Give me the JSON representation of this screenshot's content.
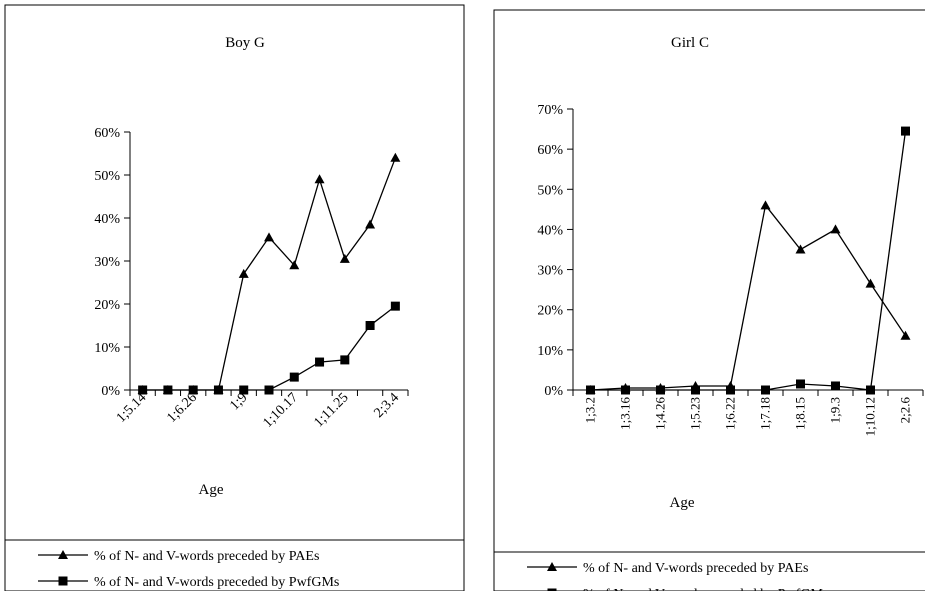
{
  "chart_data": [
    {
      "type": "line",
      "title": "Boy G",
      "xlabel": "Age",
      "ylabel": "",
      "ylim": [
        0,
        60
      ],
      "yticks": [
        "0%",
        "10%",
        "20%",
        "30%",
        "40%",
        "50%",
        "60%"
      ],
      "x": [
        "1;5.14",
        "",
        "1;6.26",
        "",
        "1;9",
        "",
        "1;10.17",
        "",
        "1;11.25",
        "",
        "2;3.4"
      ],
      "x_tick_labels": [
        "1;5.14",
        "1;6.26",
        "1;9",
        "1;10.17",
        "1;11.25",
        "2;3.4"
      ],
      "grid": false,
      "legend_position": "bottom",
      "series": [
        {
          "name": "% of N- and V-words preceded by PAEs",
          "marker": "triangle",
          "values": [
            0,
            0,
            0,
            0,
            27,
            35.5,
            29,
            49,
            30.5,
            38.5,
            54
          ]
        },
        {
          "name": "% of N- and V-words preceded by PwfGMs",
          "marker": "square",
          "values": [
            0,
            0,
            0,
            0,
            0,
            0,
            3,
            6.5,
            7,
            15,
            19.5
          ]
        }
      ]
    },
    {
      "type": "line",
      "title": "Girl C",
      "xlabel": "Age",
      "ylabel": "",
      "ylim": [
        0,
        70
      ],
      "yticks": [
        "0%",
        "10%",
        "20%",
        "30%",
        "40%",
        "50%",
        "60%",
        "70%"
      ],
      "x": [
        "1;3.2",
        "1;3.16",
        "1;4.26",
        "1;5.23",
        "1;6.22",
        "1;7.18",
        "1;8.15",
        "1;9.3",
        "1;10.12",
        "2;2.6"
      ],
      "x_tick_labels": [
        "1;3.2",
        "1;3.16",
        "1;4.26",
        "1;5.23",
        "1;6.22",
        "1;7.18",
        "1;8.15",
        "1;9.3",
        "1;10.12",
        "2;2.6"
      ],
      "grid": false,
      "legend_position": "bottom",
      "series": [
        {
          "name": "% of N- and V-words preceded by PAEs",
          "marker": "triangle",
          "values": [
            0,
            0.5,
            0.5,
            1,
            1,
            46,
            35,
            40,
            26.5,
            13.5
          ]
        },
        {
          "name": "% of N- and V-words preceded by PwfGMs",
          "marker": "square",
          "values": [
            0,
            0,
            0,
            0,
            0,
            0,
            1.5,
            1,
            0,
            64.5
          ]
        }
      ]
    }
  ]
}
